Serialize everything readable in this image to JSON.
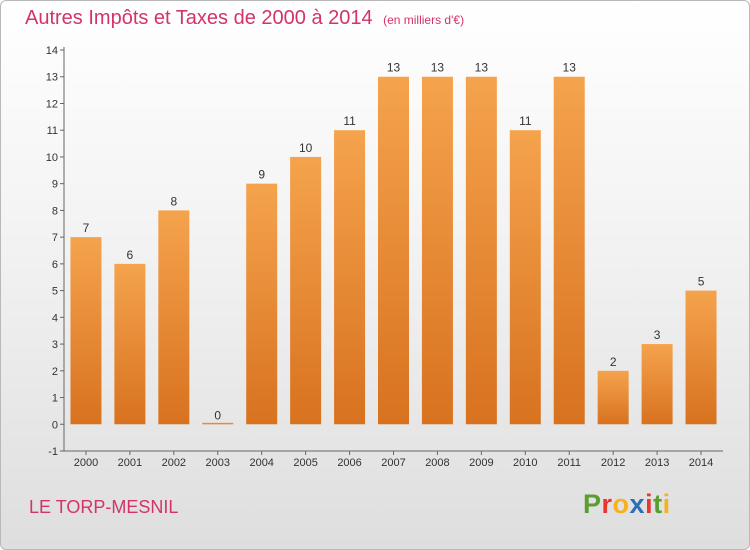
{
  "title": "Autres Impôts et Taxes de 2000 à 2014",
  "unit_label": "(en milliers d'€)",
  "commune": "LE TORP-MESNIL",
  "logo": {
    "letters": [
      "P",
      "r",
      "o",
      "x",
      "i",
      "t",
      "i"
    ],
    "colors": [
      "#5a9e2f",
      "#e8372c",
      "#f7b21b",
      "#2b6fb6",
      "#e8372c",
      "#5a9e2f",
      "#f7b21b"
    ]
  },
  "chart_data": {
    "type": "bar",
    "title": "Autres Impôts et Taxes de 2000 à 2014",
    "xlabel": "",
    "ylabel": "",
    "categories": [
      "2000",
      "2001",
      "2002",
      "2003",
      "2004",
      "2005",
      "2006",
      "2007",
      "2008",
      "2009",
      "2010",
      "2011",
      "2012",
      "2013",
      "2014"
    ],
    "values": [
      7,
      6,
      8,
      0,
      9,
      10,
      11,
      13,
      13,
      13,
      11,
      13,
      2,
      3,
      5
    ],
    "ylim": [
      -1,
      14
    ],
    "yticks": [
      "-1",
      "0",
      "1",
      "2",
      "3",
      "4",
      "5",
      "6",
      "7",
      "8",
      "9",
      "10",
      "11",
      "12",
      "13",
      "14"
    ],
    "grid": false,
    "legend": "none",
    "bar_color_top": "#f5a34d",
    "bar_color_bottom": "#d8721f"
  }
}
